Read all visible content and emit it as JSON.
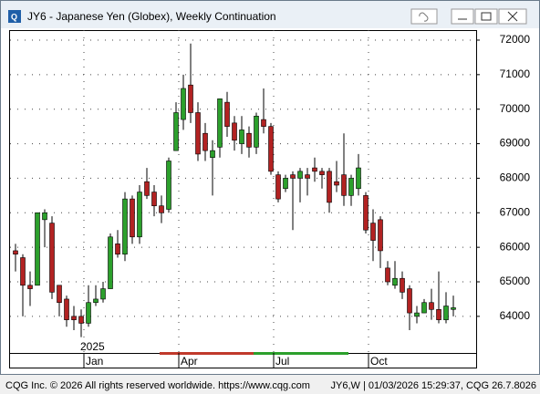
{
  "chart_data": {
    "type": "candlestick",
    "title": "JY6 - Japanese Yen (Globex), Weekly Continuation",
    "year_label": "2025",
    "categories": [
      null,
      null,
      null,
      null,
      null,
      null,
      null,
      null,
      null,
      "Jan",
      null,
      null,
      null,
      null,
      null,
      null,
      null,
      null,
      null,
      null,
      null,
      null,
      "Apr",
      null,
      null,
      null,
      null,
      null,
      null,
      null,
      null,
      null,
      null,
      null,
      null,
      "Jul",
      null,
      null,
      null,
      null,
      null,
      null,
      null,
      null,
      null,
      null,
      null,
      null,
      "Oct",
      null,
      null,
      null,
      null,
      null,
      null,
      null,
      null,
      null,
      null,
      null,
      null
    ],
    "open": [
      65900,
      65700,
      64900,
      64900,
      66800,
      66700,
      64900,
      64500,
      64000,
      64000,
      63800,
      64400,
      64500,
      64800,
      66100,
      65800,
      67400,
      66300,
      67900,
      67600,
      67200,
      67100,
      68800,
      69700,
      70700,
      69900,
      69300,
      68600,
      68900,
      70200,
      69600,
      69000,
      69300,
      68900,
      69700,
      69500,
      68100,
      67700,
      68100,
      68000,
      68100,
      68300,
      68200,
      68200,
      67900,
      68100,
      67500,
      67700,
      67500,
      66700,
      66800,
      65400,
      64900,
      65100,
      64800,
      64000,
      64100,
      64400,
      64200,
      63900,
      64200
    ],
    "high": [
      66100,
      65800,
      65300,
      67000,
      67100,
      66900,
      64900,
      64600,
      64300,
      64200,
      64900,
      64900,
      65000,
      66400,
      66500,
      67600,
      67500,
      67800,
      68300,
      67800,
      67500,
      68600,
      70200,
      71000,
      71900,
      70200,
      69600,
      69100,
      70300,
      70500,
      69800,
      69800,
      69500,
      69900,
      70600,
      69600,
      68200,
      68100,
      68200,
      68300,
      68300,
      68600,
      68300,
      68300,
      68500,
      69300,
      68100,
      68700,
      67600,
      67100,
      66900,
      65600,
      65600,
      65300,
      64900,
      64300,
      64500,
      64800,
      65300,
      64700,
      64600
    ],
    "low": [
      65300,
      64000,
      64300,
      64900,
      66000,
      64500,
      64000,
      63700,
      63600,
      63400,
      63700,
      64300,
      64400,
      64800,
      65700,
      65600,
      66100,
      66100,
      67400,
      66900,
      66700,
      67000,
      68800,
      69400,
      69600,
      68500,
      68500,
      67500,
      68600,
      69200,
      68800,
      68700,
      68600,
      68700,
      69300,
      68100,
      67300,
      67600,
      66500,
      67300,
      67500,
      67900,
      67700,
      67000,
      67600,
      67200,
      67200,
      67500,
      66400,
      65600,
      65400,
      64900,
      64800,
      64500,
      63600,
      63800,
      64100,
      63900,
      63800,
      63800,
      64000
    ],
    "close": [
      65800,
      64900,
      64800,
      67000,
      67000,
      64700,
      64400,
      63900,
      63900,
      63800,
      64400,
      64500,
      64800,
      66300,
      65800,
      67400,
      66300,
      67600,
      67500,
      67200,
      67000,
      68500,
      69900,
      70600,
      69900,
      68700,
      68800,
      68800,
      70300,
      69500,
      69100,
      69400,
      68900,
      69800,
      69500,
      68200,
      67400,
      68000,
      68000,
      68200,
      68000,
      68200,
      68100,
      67300,
      67800,
      67500,
      68000,
      68300,
      66500,
      66200,
      65900,
      65000,
      65100,
      64700,
      64100,
      64100,
      64400,
      64200,
      63900,
      64300,
      64250
    ],
    "up_color": "#2ca02c",
    "down_color": "#b22222",
    "ylim": [
      62940,
      72290
    ],
    "yticks": [
      64000,
      65000,
      66000,
      67000,
      68000,
      69000,
      70000,
      71000,
      72000
    ],
    "grid": true,
    "footer_left": "CQG Inc. © 2026 All rights reserved worldwide. https://www.cqg.com",
    "footer_right": "JY6,W | 01/03/2026 15:29:37, CQG 26.7.8026"
  }
}
